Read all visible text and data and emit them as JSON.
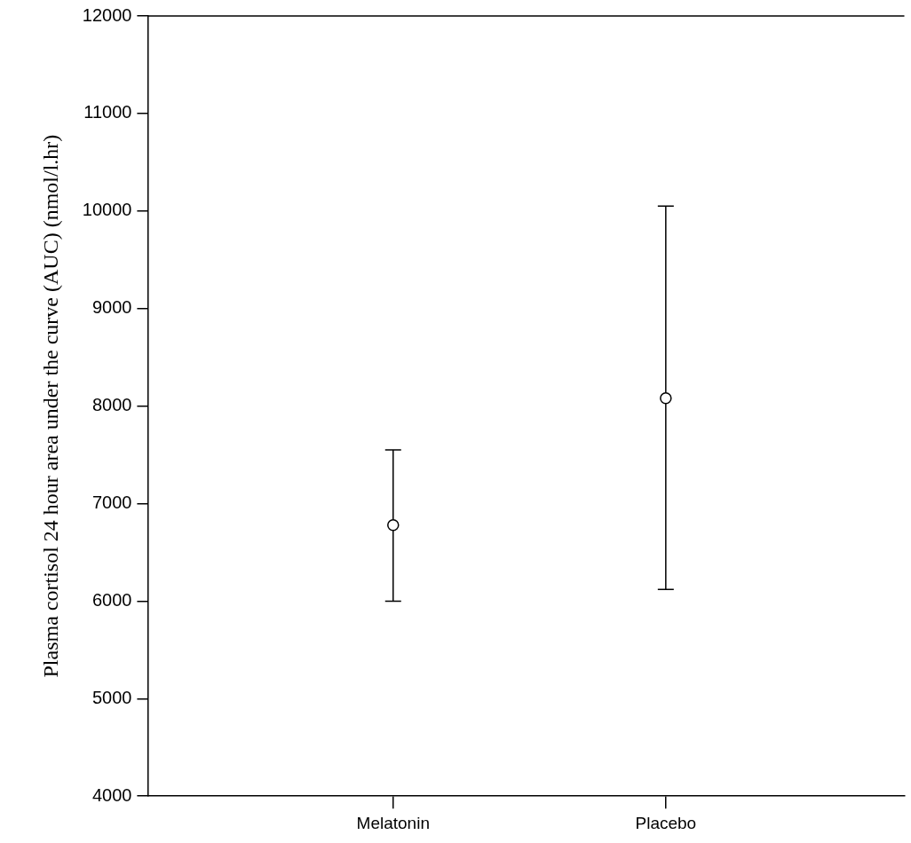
{
  "chart_data": {
    "type": "scatter",
    "ylabel": "Plasma cortisol 24 hour area under the curve (AUC) (nmol/l.hr)",
    "categories": [
      "Melatonin",
      "Placebo"
    ],
    "values": [
      6780,
      8080
    ],
    "errors": [
      [
        6000,
        7550
      ],
      [
        6120,
        10050
      ]
    ],
    "color": "#000000",
    "marker": "circle",
    "grid": false,
    "legend": false,
    "ylim": [
      4000,
      12000
    ],
    "yticks": [
      4000,
      5000,
      6000,
      7000,
      8000,
      9000,
      10000,
      11000,
      12000
    ]
  }
}
